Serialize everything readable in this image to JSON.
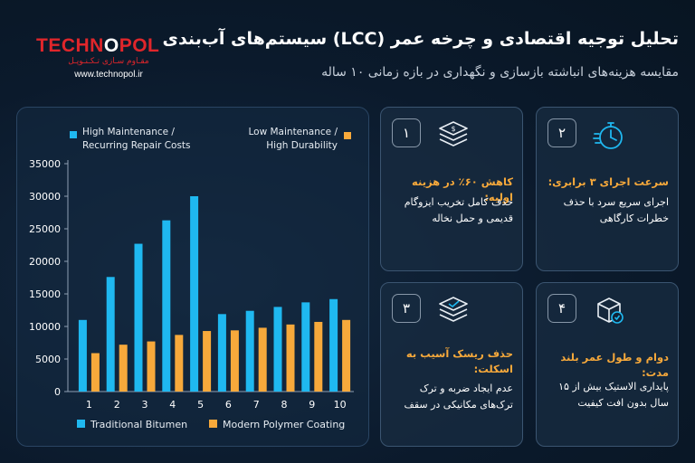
{
  "header": {
    "title": "تحلیل توجیه اقتصادی و چرخه عمر (LCC) سیستم‌های آب‌بندی",
    "subtitle": "مقایسه هزینه‌های انباشته بازسازی و نگهداری در بازه زمانی ۱۰ ساله"
  },
  "logo": {
    "brand_red": "TECHN",
    "brand_white": "O",
    "brand_red2": "POL",
    "tagline": "مقـاوم سـازی تـکـنـوپـل",
    "url": "www.technopol.ir"
  },
  "chart_data": {
    "type": "bar",
    "categories": [
      "1",
      "2",
      "3",
      "4",
      "5",
      "6",
      "7",
      "8",
      "9",
      "10"
    ],
    "series": [
      {
        "name": "Traditional Bitumen",
        "color": "#1fb8f0",
        "values": [
          11000,
          17600,
          22700,
          26300,
          30000,
          11900,
          12400,
          13000,
          13700,
          14200
        ]
      },
      {
        "name": "Modern Polymer Coating",
        "color": "#f7a93b",
        "values": [
          5900,
          7200,
          7700,
          8700,
          9300,
          9400,
          9800,
          10300,
          10700,
          11000
        ]
      }
    ],
    "ylim": [
      0,
      35000
    ],
    "yticks": [
      0,
      5000,
      10000,
      15000,
      20000,
      25000,
      30000,
      35000
    ],
    "annotations": [
      {
        "text": [
          "High Maintenance /",
          "Recurring Repair Costs"
        ],
        "color": "#1fb8f0"
      },
      {
        "text": [
          "Low Maintenance /",
          "High Durability"
        ],
        "color": "#f7a93b"
      }
    ],
    "legend_position": "bottom",
    "grid": false
  },
  "cards": [
    {
      "number": "۱",
      "icon": "dollar-layers-icon",
      "heading": "کاهش ۶۰٪ در هزینه اولیه:",
      "body": "حذف کامل تخریب ایزوگام قدیمی و حمل نخاله"
    },
    {
      "number": "۲",
      "icon": "stopwatch-icon",
      "heading": "سرعت اجرای ۳ برابری:",
      "body": "اجرای سریع سرد با حذف خطرات کارگاهی"
    },
    {
      "number": "۳",
      "icon": "layers-check-icon",
      "heading": "حذف ریسک آسیب به اسکلت:",
      "body": "عدم ایجاد ضربه و ترک ترک‌های مکانیکی در سقف"
    },
    {
      "number": "۴",
      "icon": "shield-box-icon",
      "heading": "دوام و طول عمر بلند مدت:",
      "body": "پایداری الاستیک بیش از ۱۵ سال بدون افت کیفیت"
    }
  ],
  "colors": {
    "accent_orange": "#f7a93b",
    "accent_blue": "#1fb8f0",
    "brand_red": "#e0262b"
  }
}
